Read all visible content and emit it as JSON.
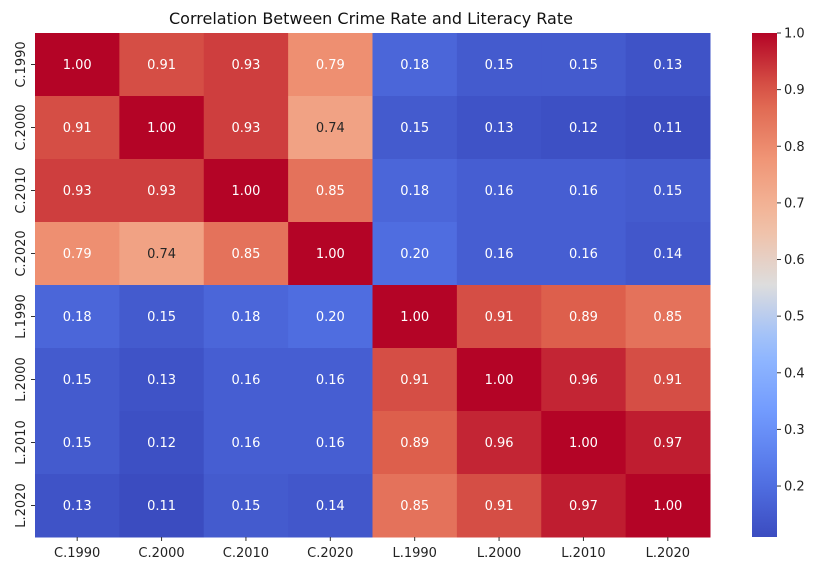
{
  "chart_data": {
    "type": "heatmap",
    "title": "Correlation Between Crime Rate and Literacy Rate",
    "xlabel": "",
    "ylabel": "",
    "x_categories": [
      "C.1990",
      "C.2000",
      "C.2010",
      "C.2020",
      "L.1990",
      "L.2000",
      "L.2010",
      "L.2020"
    ],
    "y_categories": [
      "C.1990",
      "C.2000",
      "C.2010",
      "C.2020",
      "L.1990",
      "L.2000",
      "L.2010",
      "L.2020"
    ],
    "values": [
      [
        1.0,
        0.91,
        0.93,
        0.79,
        0.18,
        0.15,
        0.15,
        0.13
      ],
      [
        0.91,
        1.0,
        0.93,
        0.74,
        0.15,
        0.13,
        0.12,
        0.11
      ],
      [
        0.93,
        0.93,
        1.0,
        0.85,
        0.18,
        0.16,
        0.16,
        0.15
      ],
      [
        0.79,
        0.74,
        0.85,
        1.0,
        0.2,
        0.16,
        0.16,
        0.14
      ],
      [
        0.18,
        0.15,
        0.18,
        0.2,
        1.0,
        0.91,
        0.89,
        0.85
      ],
      [
        0.15,
        0.13,
        0.16,
        0.16,
        0.91,
        1.0,
        0.96,
        0.91
      ],
      [
        0.15,
        0.12,
        0.16,
        0.16,
        0.89,
        0.96,
        1.0,
        0.97
      ],
      [
        0.13,
        0.11,
        0.15,
        0.14,
        0.85,
        0.91,
        0.97,
        1.0
      ]
    ],
    "value_format": "2 decimals",
    "colormap": "coolwarm",
    "color_range": [
      0.11,
      1.0
    ],
    "colorbar_ticks": [
      0.2,
      0.3,
      0.4,
      0.5,
      0.6,
      0.7,
      0.8,
      0.9,
      1.0
    ],
    "colorbar_tick_labels": [
      "0.2",
      "0.3",
      "0.4",
      "0.5",
      "0.6",
      "0.7",
      "0.8",
      "0.9",
      "1.0"
    ]
  }
}
